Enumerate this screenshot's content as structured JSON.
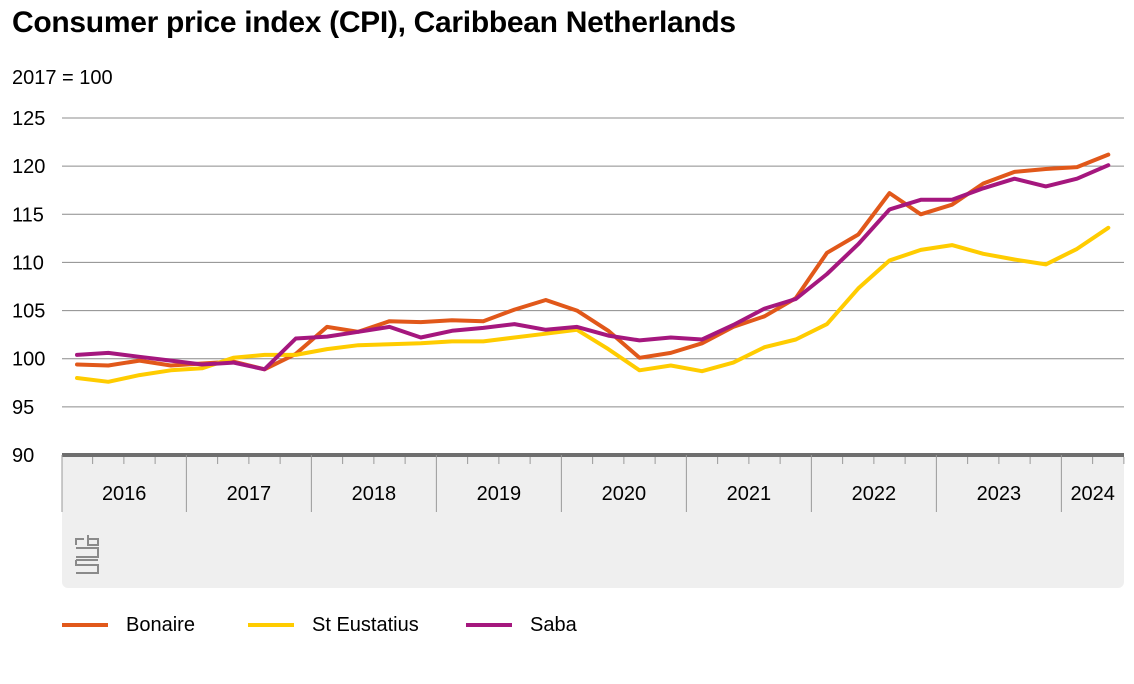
{
  "chart_data": {
    "type": "line",
    "title": "Consumer price index (CPI), Caribbean Netherlands",
    "subtitle": "2017 = 100",
    "ylim": [
      90,
      125
    ],
    "yticks": [
      "125",
      "120",
      "115",
      "110",
      "105",
      "100",
      "95",
      "90"
    ],
    "ytick_values": [
      125,
      120,
      115,
      110,
      105,
      100,
      95,
      90
    ],
    "x_periods": [
      "2016 Q1",
      "2016 Q2",
      "2016 Q3",
      "2016 Q4",
      "2017 Q1",
      "2017 Q2",
      "2017 Q3",
      "2017 Q4",
      "2018 Q1",
      "2018 Q2",
      "2018 Q3",
      "2018 Q4",
      "2019 Q1",
      "2019 Q2",
      "2019 Q3",
      "2019 Q4",
      "2020 Q1",
      "2020 Q2",
      "2020 Q3",
      "2020 Q4",
      "2021 Q1",
      "2021 Q2",
      "2021 Q3",
      "2021 Q4",
      "2022 Q1",
      "2022 Q2",
      "2022 Q3",
      "2022 Q4",
      "2023 Q1",
      "2023 Q2",
      "2023 Q3",
      "2023 Q4",
      "2024 Q1",
      "2024 Q2"
    ],
    "year_labels": [
      "2016",
      "2017",
      "2018",
      "2019",
      "2020",
      "2021",
      "2022",
      "2023",
      "2024"
    ],
    "series": [
      {
        "name": "Bonaire",
        "color": "#e1581a",
        "values": [
          99.4,
          99.3,
          99.8,
          99.3,
          99.5,
          99.7,
          98.9,
          100.5,
          103.3,
          102.8,
          103.9,
          103.8,
          104.0,
          103.9,
          105.1,
          106.1,
          105.0,
          102.9,
          100.1,
          100.6,
          101.6,
          103.3,
          104.4,
          106.3,
          111.0,
          112.9,
          117.2,
          115.0,
          116.0,
          118.2,
          119.4,
          119.7,
          119.9,
          121.2
        ]
      },
      {
        "name": "St Eustatius",
        "color": "#ffcc00",
        "values": [
          98.0,
          97.6,
          98.3,
          98.8,
          99.0,
          100.1,
          100.4,
          100.4,
          101.0,
          101.4,
          101.5,
          101.6,
          101.8,
          101.8,
          102.2,
          102.6,
          103.0,
          101.0,
          98.8,
          99.3,
          98.7,
          99.6,
          101.2,
          102.0,
          103.6,
          107.3,
          110.2,
          111.3,
          111.8,
          110.9,
          110.3,
          109.8,
          111.4,
          113.6
        ]
      },
      {
        "name": "Saba",
        "color": "#a5177e",
        "values": [
          100.4,
          100.6,
          100.2,
          99.8,
          99.4,
          99.6,
          98.9,
          102.1,
          102.3,
          102.8,
          103.3,
          102.2,
          102.9,
          103.2,
          103.6,
          103.0,
          103.3,
          102.4,
          101.9,
          102.2,
          102.0,
          103.5,
          105.2,
          106.2,
          108.8,
          111.9,
          115.5,
          116.5,
          116.5,
          117.7,
          118.7,
          117.9,
          118.7,
          120.1
        ]
      }
    ]
  },
  "footer": {
    "logo_text": "cbs"
  }
}
